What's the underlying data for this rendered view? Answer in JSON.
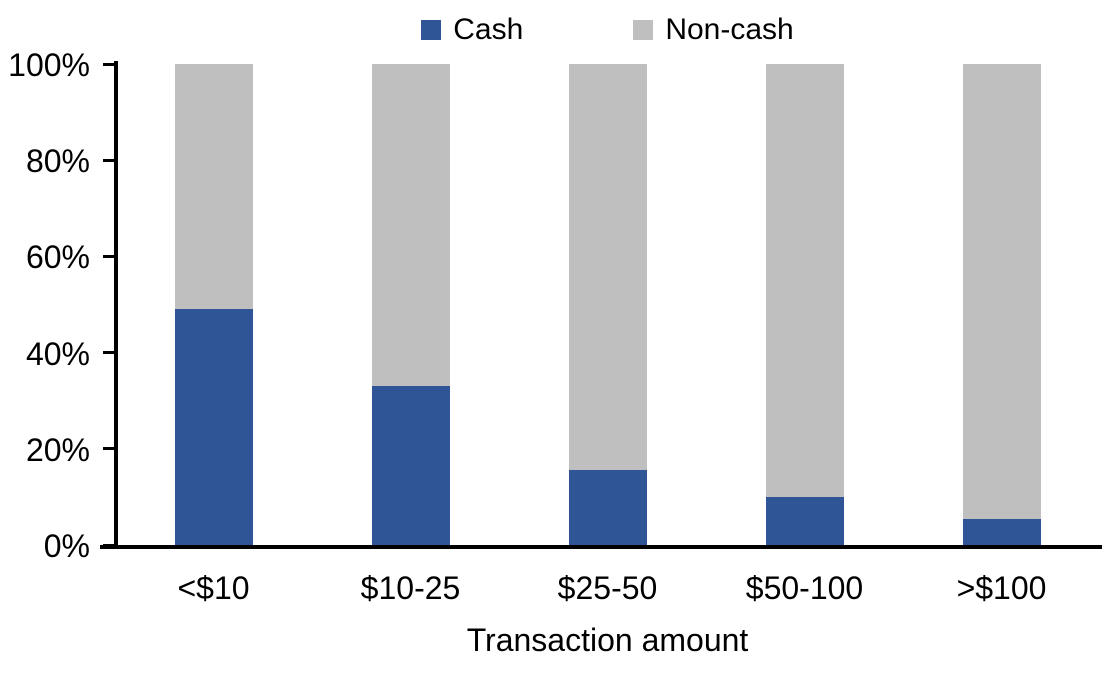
{
  "colors": {
    "cash": "#2F5597",
    "noncash": "#BFBFBF",
    "axis": "#000000",
    "background": "#FFFFFF"
  },
  "chart_data": {
    "type": "bar",
    "variant": "stacked-100",
    "title": "",
    "xlabel": "Transaction amount",
    "ylabel": "",
    "categories": [
      "<$10",
      "$10-25",
      "$25-50",
      "$50-100",
      ">$100"
    ],
    "series": [
      {
        "name": "Cash",
        "color": "#2F5597",
        "values": [
          49,
          33,
          15.5,
          10,
          5.5
        ]
      },
      {
        "name": "Non-cash",
        "color": "#BFBFBF",
        "values": [
          51,
          67,
          84.5,
          90,
          94.5
        ]
      }
    ],
    "ylim": [
      0,
      100
    ],
    "ytick_values": [
      0,
      20,
      40,
      60,
      80,
      100
    ],
    "ytick_labels": [
      "0%",
      "20%",
      "40%",
      "60%",
      "80%",
      "100%"
    ],
    "legend_position": "top",
    "grid": "off"
  }
}
